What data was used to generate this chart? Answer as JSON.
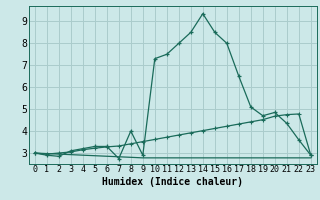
{
  "title": "",
  "xlabel": "Humidex (Indice chaleur)",
  "bg_color": "#cce8e8",
  "grid_color": "#aacccc",
  "line_color": "#1a6b5a",
  "xlim": [
    -0.5,
    23.5
  ],
  "ylim": [
    2.5,
    9.7
  ],
  "xticks": [
    0,
    1,
    2,
    3,
    4,
    5,
    6,
    7,
    8,
    9,
    10,
    11,
    12,
    13,
    14,
    15,
    16,
    17,
    18,
    19,
    20,
    21,
    22,
    23
  ],
  "yticks": [
    3,
    4,
    5,
    6,
    7,
    8,
    9
  ],
  "series1_x": [
    0,
    1,
    2,
    3,
    4,
    5,
    6,
    7,
    8,
    9,
    10,
    11,
    12,
    13,
    14,
    15,
    16,
    17,
    18,
    19,
    20,
    21,
    22,
    23
  ],
  "series1_y": [
    3.0,
    2.9,
    2.85,
    3.1,
    3.2,
    3.3,
    3.3,
    2.75,
    4.0,
    2.9,
    7.3,
    7.5,
    8.0,
    8.5,
    9.35,
    8.5,
    8.0,
    6.5,
    5.1,
    4.7,
    4.85,
    4.35,
    3.6,
    2.9
  ],
  "series2_x": [
    0,
    1,
    2,
    3,
    4,
    5,
    6,
    7,
    8,
    9,
    10,
    11,
    12,
    13,
    14,
    15,
    16,
    17,
    18,
    19,
    20,
    21,
    22,
    23
  ],
  "series2_y": [
    3.0,
    2.95,
    3.0,
    3.05,
    3.15,
    3.22,
    3.28,
    3.32,
    3.42,
    3.52,
    3.62,
    3.72,
    3.82,
    3.92,
    4.02,
    4.12,
    4.22,
    4.32,
    4.42,
    4.52,
    4.68,
    4.75,
    4.78,
    2.9
  ],
  "series3_x": [
    0,
    9,
    23
  ],
  "series3_y": [
    3.0,
    2.78,
    2.78
  ],
  "fontsize_xlabel": 7,
  "fontsize_ytick": 7,
  "fontsize_xtick": 6
}
